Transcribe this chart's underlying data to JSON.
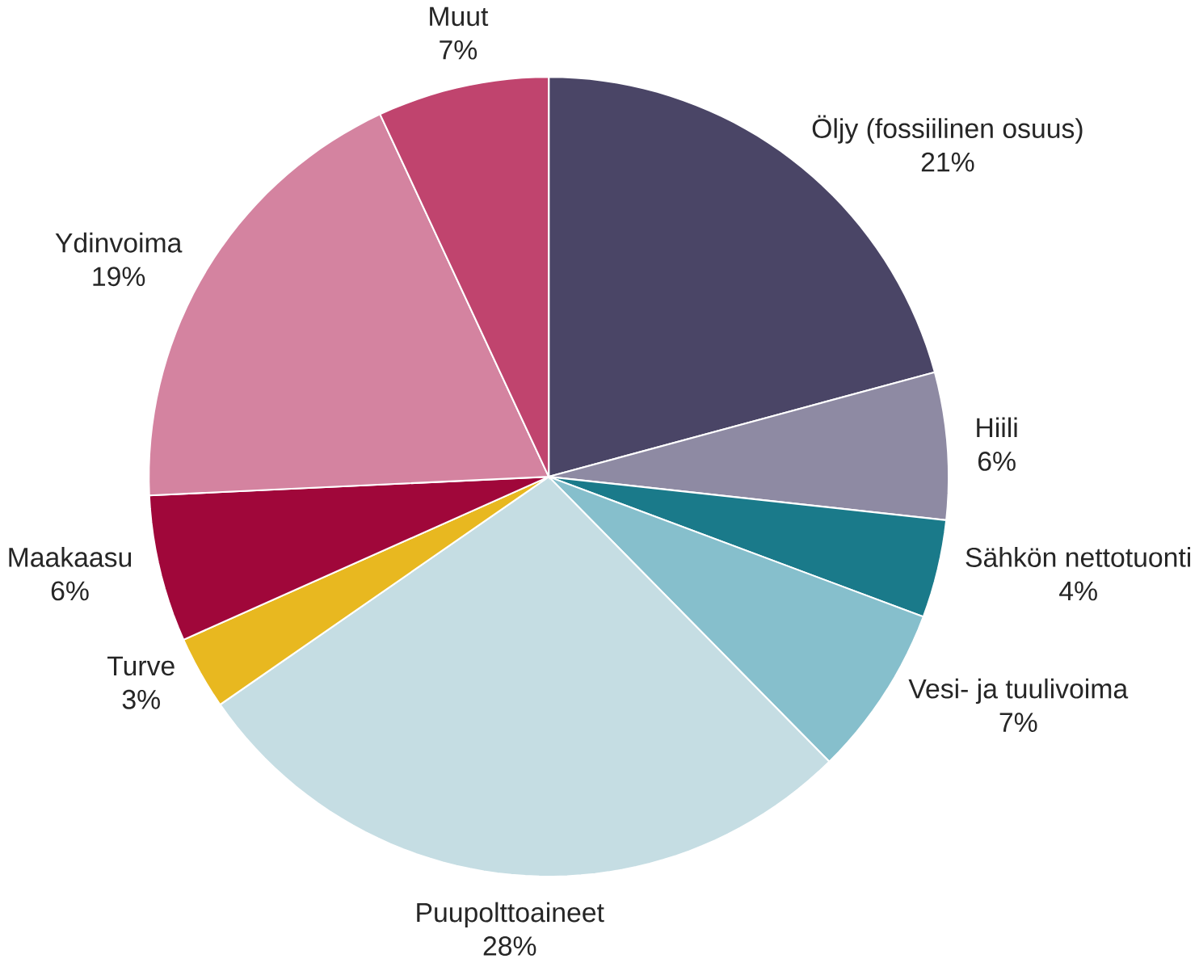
{
  "chart_data": {
    "type": "pie",
    "categories": [
      "Öljy (fossiilinen osuus)",
      "Hiili",
      "Sähkön nettotuonti",
      "Vesi- ja tuulivoima",
      "Puupolttoaineet",
      "Turve",
      "Maakaasu",
      "Ydinvoima",
      "Muut"
    ],
    "values": [
      21,
      6,
      4,
      7,
      28,
      3,
      6,
      19,
      7
    ],
    "value_labels": [
      "21%",
      "6%",
      "4%",
      "7%",
      "28%",
      "3%",
      "6%",
      "19%",
      "7%"
    ],
    "colors": [
      "#4a4566",
      "#8e8aa3",
      "#1a7a8a",
      "#86bfcc",
      "#c5dde3",
      "#e8b820",
      "#a0073a",
      "#d483a0",
      "#c0446e"
    ]
  }
}
